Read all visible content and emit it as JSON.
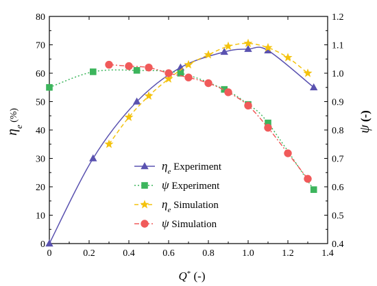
{
  "chart_data": {
    "type": "line",
    "title": "",
    "x": {
      "label_sym": "Q",
      "label_sup": "*",
      "label_unit": " (-)",
      "range": [
        0,
        1.4
      ],
      "ticks": [
        "0",
        "0.2",
        "0.4",
        "0.6",
        "0.8",
        "1.0",
        "1.2",
        "1.4"
      ]
    },
    "y_left": {
      "label_sym": "η",
      "label_sub": "e",
      "label_unit": " (%)",
      "range": [
        0,
        80
      ],
      "ticks": [
        "0",
        "10",
        "20",
        "30",
        "40",
        "50",
        "60",
        "70",
        "80"
      ]
    },
    "y_right": {
      "label_sym": "ψ",
      "label_unit": " (-)",
      "range": [
        0.4,
        1.2
      ],
      "ticks": [
        "0.4",
        "0.5",
        "0.6",
        "0.7",
        "0.8",
        "0.9",
        "1.0",
        "1.1",
        "1.2"
      ]
    },
    "grid": false,
    "legend_position": "bottom-center",
    "series": [
      {
        "name_sym": "η",
        "name_sub": "e",
        "name_rest": " Experiment",
        "axis": "left",
        "color": "#5a52b0",
        "marker": "triangle",
        "dash": "solid",
        "x": [
          0,
          0.22,
          0.44,
          0.66,
          0.88,
          1.0,
          1.1,
          1.33
        ],
        "y": [
          0,
          30,
          50,
          62,
          67.5,
          68.5,
          68,
          55
        ]
      },
      {
        "name_sym": "ψ",
        "name_sub": "",
        "name_rest": " Experiment",
        "axis": "right",
        "color": "#3cb55c",
        "marker": "square",
        "dash": "dotted",
        "x": [
          0,
          0.22,
          0.44,
          0.66,
          0.88,
          1.0,
          1.1,
          1.33
        ],
        "y": [
          0.95,
          1.005,
          1.01,
          1.0,
          0.943,
          0.89,
          0.825,
          0.59
        ]
      },
      {
        "name_sym": "η",
        "name_sub": "e",
        "name_rest": " Simulation",
        "axis": "left",
        "color": "#f4c20d",
        "marker": "star",
        "dash": "dashed",
        "x": [
          0.3,
          0.4,
          0.5,
          0.6,
          0.7,
          0.8,
          0.9,
          1.0,
          1.1,
          1.2,
          1.3
        ],
        "y": [
          35,
          44.5,
          52,
          58,
          63,
          66.5,
          69.5,
          70.5,
          69,
          65.5,
          60
        ]
      },
      {
        "name_sym": "ψ",
        "name_sub": "",
        "name_rest": " Simulation",
        "axis": "right",
        "color": "#f05a5a",
        "marker": "circle",
        "dash": "dashdot",
        "x": [
          0.3,
          0.4,
          0.5,
          0.6,
          0.7,
          0.8,
          0.9,
          1.0,
          1.1,
          1.2,
          1.3
        ],
        "y": [
          1.03,
          1.025,
          1.02,
          1.0,
          0.985,
          0.965,
          0.933,
          0.886,
          0.808,
          0.718,
          0.628
        ]
      }
    ]
  }
}
